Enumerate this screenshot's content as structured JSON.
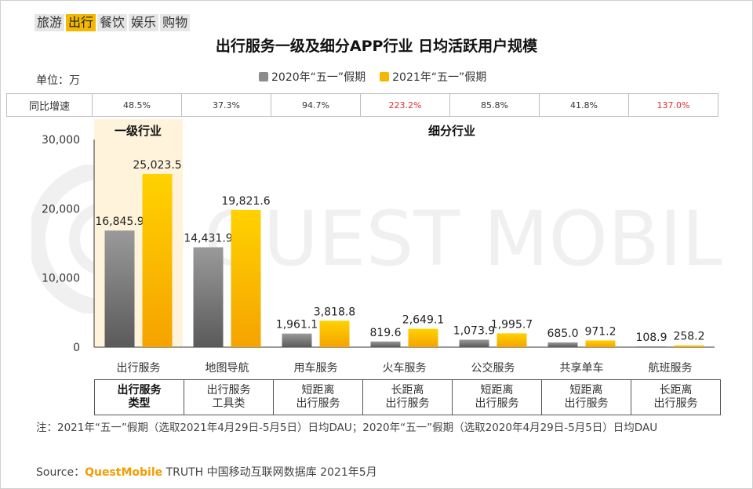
{
  "tabs": [
    "旅游",
    "出行",
    "餐饮",
    "娱乐",
    "购物"
  ],
  "active_tab": 1,
  "title": "出行服务一级及细分APP行业 日均活跃用户规模",
  "unit": "单位：万",
  "legend": [
    {
      "label": "2020年“五一”假期",
      "color": "#8c8c8c"
    },
    {
      "label": "2021年“五一”假期",
      "color": "#f5b800"
    }
  ],
  "yoy": {
    "header": "同比增速",
    "values": [
      "48.5%",
      "37.3%",
      "94.7%",
      "223.2%",
      "85.8%",
      "41.8%",
      "137.0%"
    ],
    "highlight": [
      false,
      false,
      false,
      true,
      false,
      true,
      true
    ]
  },
  "group_labels": {
    "primary": "一级行业",
    "sub": "细分行业"
  },
  "chart_data": {
    "type": "bar",
    "categories": [
      "出行服务",
      "地图导航",
      "用车服务",
      "火车服务",
      "公交服务",
      "共享单车",
      "航班服务"
    ],
    "series": [
      {
        "name": "2020年“五一”假期",
        "values": [
          16845.9,
          14431.9,
          1961.1,
          819.6,
          1073.9,
          685.0,
          108.9
        ],
        "labels": [
          "16,845.9",
          "14,431.9",
          "1,961.1",
          "819.6",
          "1,073.9",
          "685.0",
          "108.9"
        ]
      },
      {
        "name": "2021年“五一”假期",
        "values": [
          25023.5,
          19821.6,
          3818.8,
          2649.1,
          1995.7,
          971.2,
          258.2
        ],
        "labels": [
          "25,023.5",
          "19,821.6",
          "3,818.8",
          "2,649.1",
          "1,995.7",
          "971.2",
          "258.2"
        ]
      }
    ],
    "ylim": [
      0,
      30000
    ],
    "yticks": [
      0,
      10000,
      20000,
      30000
    ],
    "ytick_labels": [
      "0",
      "10,000",
      "20,000",
      "30,000"
    ],
    "grid": false
  },
  "types": [
    "出行服务\n类型",
    "出行服务\n工具类",
    "短距离\n出行服务",
    "长距离\n出行服务",
    "短距离\n出行服务",
    "短距离\n出行服务",
    "长距离\n出行服务"
  ],
  "note": "注：2021年“五一”假期（选取2021年4月29日-5月5日）日均DAU；2020年“五一”假期（选取2020年4月29日-5月5日）日均DAU",
  "source": {
    "prefix": "Source：",
    "brand": "QuestMobile",
    "rest": " TRUTH 中国移动互联网数据库 2021年5月"
  },
  "watermark": "QUEST MOBILE"
}
